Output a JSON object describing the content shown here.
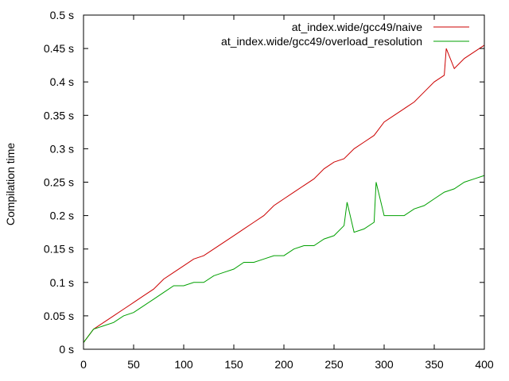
{
  "chart_data": {
    "type": "line",
    "title": "",
    "xlabel": "",
    "ylabel": "Compilation time",
    "xlim": [
      0,
      400
    ],
    "ylim": [
      0,
      0.5
    ],
    "grid": false,
    "legend_position": "top-right",
    "x_ticks": [
      {
        "value": 0,
        "label": "0"
      },
      {
        "value": 50,
        "label": "50"
      },
      {
        "value": 100,
        "label": "100"
      },
      {
        "value": 150,
        "label": "150"
      },
      {
        "value": 200,
        "label": "200"
      },
      {
        "value": 250,
        "label": "250"
      },
      {
        "value": 300,
        "label": "300"
      },
      {
        "value": 350,
        "label": "350"
      },
      {
        "value": 400,
        "label": "400"
      }
    ],
    "y_ticks": [
      {
        "value": 0,
        "label": "0 s"
      },
      {
        "value": 0.05,
        "label": "0.05 s"
      },
      {
        "value": 0.1,
        "label": "0.1 s"
      },
      {
        "value": 0.15,
        "label": "0.15 s"
      },
      {
        "value": 0.2,
        "label": "0.2 s"
      },
      {
        "value": 0.25,
        "label": "0.25 s"
      },
      {
        "value": 0.3,
        "label": "0.3 s"
      },
      {
        "value": 0.35,
        "label": "0.35 s"
      },
      {
        "value": 0.4,
        "label": "0.4 s"
      },
      {
        "value": 0.45,
        "label": "0.45 s"
      },
      {
        "value": 0.5,
        "label": "0.5 s"
      }
    ],
    "series": [
      {
        "name": "at_index.wide/gcc49/naive",
        "color": "#cc0000",
        "x": [
          0,
          10,
          20,
          30,
          40,
          50,
          60,
          70,
          80,
          90,
          100,
          110,
          120,
          130,
          140,
          150,
          160,
          170,
          180,
          190,
          200,
          210,
          220,
          230,
          240,
          250,
          260,
          270,
          280,
          290,
          300,
          310,
          320,
          330,
          340,
          350,
          360,
          362,
          370,
          380,
          390,
          400
        ],
        "y": [
          0.01,
          0.03,
          0.04,
          0.05,
          0.06,
          0.07,
          0.08,
          0.09,
          0.105,
          0.115,
          0.125,
          0.135,
          0.14,
          0.15,
          0.16,
          0.17,
          0.18,
          0.19,
          0.2,
          0.215,
          0.225,
          0.235,
          0.245,
          0.255,
          0.27,
          0.28,
          0.285,
          0.3,
          0.31,
          0.32,
          0.34,
          0.35,
          0.36,
          0.37,
          0.385,
          0.4,
          0.41,
          0.45,
          0.42,
          0.435,
          0.445,
          0.455
        ]
      },
      {
        "name": "at_index.wide/gcc49/overload_resolution",
        "color": "#00a000",
        "x": [
          0,
          10,
          20,
          30,
          40,
          50,
          60,
          70,
          80,
          90,
          100,
          110,
          120,
          130,
          140,
          150,
          160,
          170,
          180,
          190,
          200,
          210,
          220,
          230,
          240,
          250,
          260,
          263,
          270,
          280,
          290,
          292,
          300,
          310,
          320,
          330,
          340,
          350,
          360,
          370,
          380,
          390,
          400
        ],
        "y": [
          0.01,
          0.03,
          0.035,
          0.04,
          0.05,
          0.055,
          0.065,
          0.075,
          0.085,
          0.095,
          0.095,
          0.1,
          0.1,
          0.11,
          0.115,
          0.12,
          0.13,
          0.13,
          0.135,
          0.14,
          0.14,
          0.15,
          0.155,
          0.155,
          0.165,
          0.17,
          0.185,
          0.22,
          0.175,
          0.18,
          0.19,
          0.25,
          0.2,
          0.2,
          0.2,
          0.21,
          0.215,
          0.225,
          0.235,
          0.24,
          0.25,
          0.255,
          0.26
        ]
      }
    ]
  }
}
